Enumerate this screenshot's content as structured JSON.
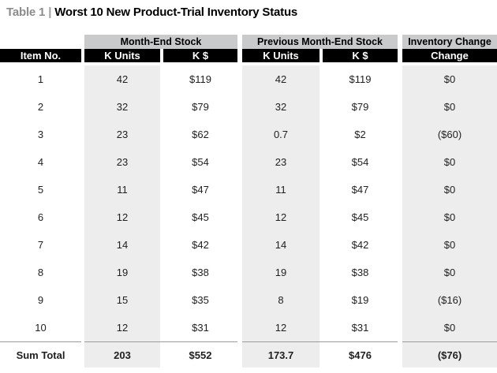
{
  "title": {
    "label": "Table 1",
    "separator": "|",
    "heading": "Worst 10 New Product-Trial Inventory Status"
  },
  "colors": {
    "header_bg": "#000000",
    "header_text": "#ffffff",
    "group_header_bg": "#c9cacc",
    "band_bg": "#ededed",
    "title_label": "#8c8c8c",
    "text": "#1f1f1f",
    "total_rule": "#9b9b9b"
  },
  "table": {
    "group_headers": [
      {
        "label": "Month-End Stock",
        "span": 2
      },
      {
        "label": "Previous Month-End Stock",
        "span": 2
      },
      {
        "label": "Inventory Change",
        "span": 1
      }
    ],
    "column_headers": [
      "Item No.",
      "K Units",
      "K $",
      "K Units",
      "K $",
      "Change"
    ],
    "rows": [
      [
        "1",
        "42",
        "$119",
        "42",
        "$119",
        "$0"
      ],
      [
        "2",
        "32",
        "$79",
        "32",
        "$79",
        "$0"
      ],
      [
        "3",
        "23",
        "$62",
        "0.7",
        "$2",
        "($60)"
      ],
      [
        "4",
        "23",
        "$54",
        "23",
        "$54",
        "$0"
      ],
      [
        "5",
        "11",
        "$47",
        "11",
        "$47",
        "$0"
      ],
      [
        "6",
        "12",
        "$45",
        "12",
        "$45",
        "$0"
      ],
      [
        "7",
        "14",
        "$42",
        "14",
        "$42",
        "$0"
      ],
      [
        "8",
        "19",
        "$38",
        "19",
        "$38",
        "$0"
      ],
      [
        "9",
        "15",
        "$35",
        "8",
        "$19",
        "($16)"
      ],
      [
        "10",
        "12",
        "$31",
        "12",
        "$31",
        "$0"
      ]
    ],
    "total_row": [
      "Sum Total",
      "203",
      "$552",
      "173.7",
      "$476",
      "($76)"
    ]
  }
}
